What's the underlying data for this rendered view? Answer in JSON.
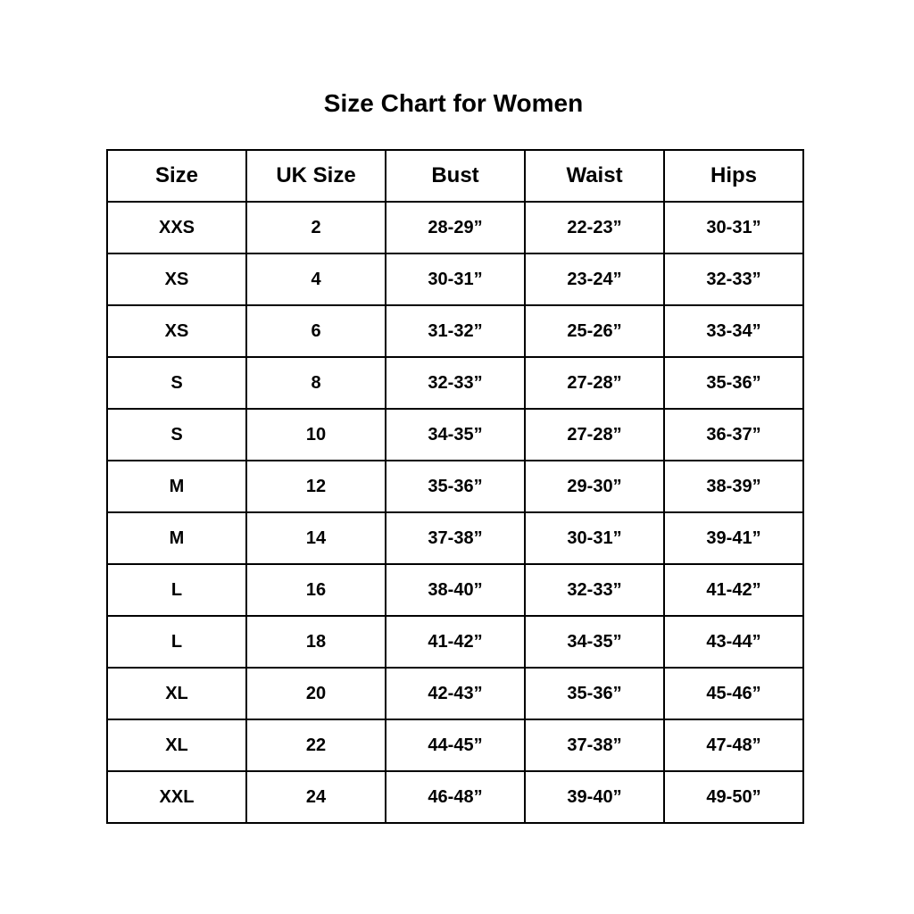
{
  "title": "Size Chart for Women",
  "columns": [
    "Size",
    "UK Size",
    "Bust",
    "Waist",
    "Hips"
  ],
  "rows": [
    [
      "XXS",
      "2",
      "28-29”",
      "22-23”",
      "30-31”"
    ],
    [
      "XS",
      "4",
      "30-31”",
      "23-24”",
      "32-33”"
    ],
    [
      "XS",
      "6",
      "31-32”",
      "25-26”",
      "33-34”"
    ],
    [
      "S",
      "8",
      "32-33”",
      "27-28”",
      "35-36”"
    ],
    [
      "S",
      "10",
      "34-35”",
      "27-28”",
      "36-37”"
    ],
    [
      "M",
      "12",
      "35-36”",
      "29-30”",
      "38-39”"
    ],
    [
      "M",
      "14",
      "37-38”",
      "30-31”",
      "39-41”"
    ],
    [
      "L",
      "16",
      "38-40”",
      "32-33”",
      "41-42”"
    ],
    [
      "L",
      "18",
      "41-42”",
      "34-35”",
      "43-44”"
    ],
    [
      "XL",
      "20",
      "42-43”",
      "35-36”",
      "45-46”"
    ],
    [
      "XL",
      "22",
      "44-45”",
      "37-38”",
      "47-48”"
    ],
    [
      "XXL",
      "24",
      "46-48”",
      "39-40”",
      "49-50”"
    ]
  ]
}
